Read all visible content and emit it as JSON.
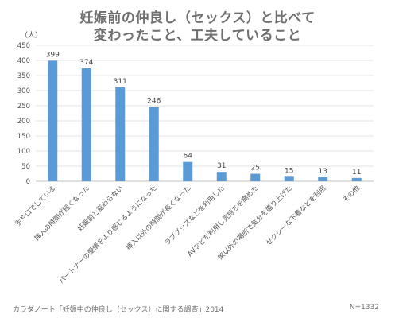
{
  "chart_data": {
    "type": "bar",
    "title": [
      "妊娠前の仲良し（セックス）と比べて",
      "変わったこと、工夫していること"
    ],
    "unit_label": "（人）",
    "ylim": [
      0,
      450
    ],
    "yticks": [
      0,
      50,
      100,
      150,
      200,
      250,
      300,
      350,
      400,
      450
    ],
    "grid": true,
    "color": "#5b9bd5",
    "categories": [
      "手や口でしている",
      "挿入の時間が短くなった",
      "妊娠前と変わらない",
      "パートナーの愛情をより感じるようになった",
      "挿入以外の時間が長くなった",
      "ラブグッズなどを利用した",
      "AVなどを利用し気持ちを高めた",
      "家以外の場所で気分を盛り上げた",
      "セクシーな下着などを利用",
      "その他"
    ],
    "values": [
      399,
      374,
      311,
      246,
      64,
      31,
      25,
      15,
      13,
      11
    ]
  },
  "footer": {
    "source": "カラダノート「妊娠中の仲良し（セックス）に関する調査」2014",
    "n": "N=1332"
  }
}
